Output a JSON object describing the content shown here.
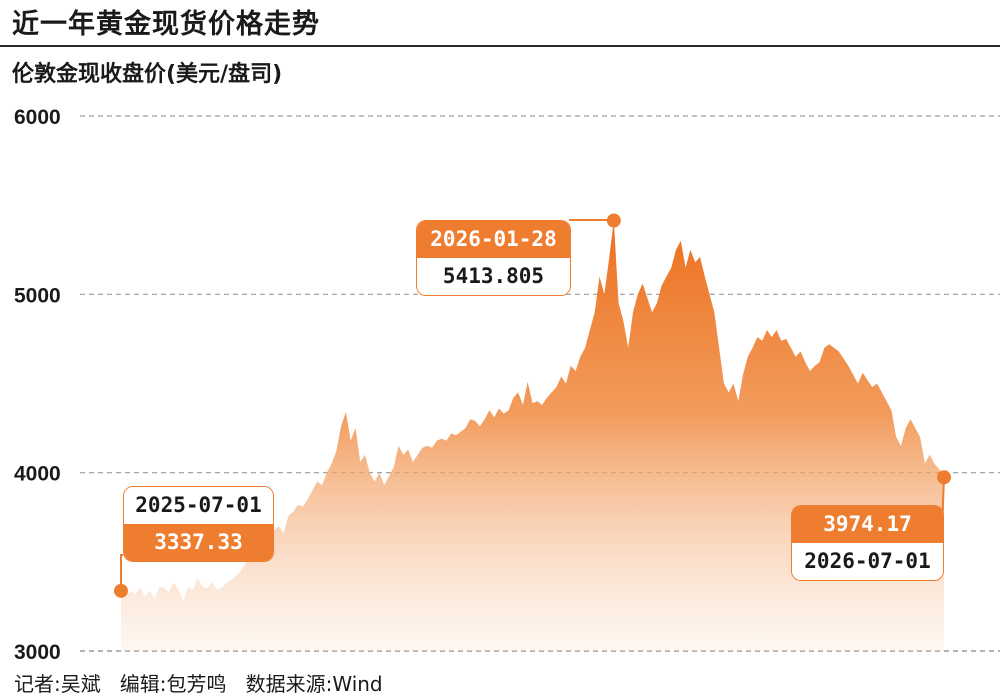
{
  "title": "近一年黄金现货价格走势",
  "ylabel": "伦敦金现收盘价(美元/盘司)",
  "footer": "记者:吴斌   编辑:包芳鸣   数据来源:Wind",
  "colors": {
    "accent": "#ef7d2f",
    "fill_light": "#fbe2cf",
    "grid": "#999999",
    "text": "#1a1a1a"
  },
  "callouts": {
    "start": {
      "date": "2025-07-01",
      "value": "3337.33"
    },
    "peak": {
      "date": "2026-01-28",
      "value": "5413.805"
    },
    "end": {
      "value": "3974.17",
      "date": "2026-07-01"
    }
  },
  "chart_data": {
    "type": "area",
    "title": "近一年黄金现货价格走势",
    "ylabel": "伦敦金现收盘价(美元/盘司)",
    "ylim": [
      3000,
      6000
    ],
    "yticks": [
      3000,
      4000,
      5000,
      6000
    ],
    "grid": true,
    "x_start": "2025-07-01",
    "x_end": "2026-07-01",
    "series": [
      {
        "values": [
          3337.33,
          3310,
          3335,
          3320,
          3355,
          3305,
          3340,
          3290,
          3360,
          3355,
          3330,
          3385,
          3345,
          3280,
          3360,
          3340,
          3410,
          3360,
          3350,
          3385,
          3345,
          3355,
          3380,
          3400,
          3420,
          3450,
          3490,
          3550,
          3650,
          3620,
          3640,
          3600,
          3680,
          3700,
          3660,
          3760,
          3780,
          3820,
          3810,
          3850,
          3900,
          3950,
          3930,
          4000,
          4050,
          4120,
          4260,
          4340,
          4180,
          4250,
          4060,
          4100,
          4000,
          3950,
          4000,
          3930,
          3980,
          4030,
          4150,
          4100,
          4130,
          4060,
          4100,
          4140,
          4150,
          4140,
          4180,
          4190,
          4180,
          4220,
          4210,
          4230,
          4250,
          4300,
          4290,
          4260,
          4300,
          4350,
          4310,
          4360,
          4330,
          4350,
          4420,
          4450,
          4380,
          4510,
          4390,
          4400,
          4380,
          4420,
          4450,
          4480,
          4540,
          4500,
          4600,
          4570,
          4650,
          4700,
          4800,
          4900,
          5100,
          5000,
          5200,
          5413.805,
          4950,
          4850,
          4700,
          4900,
          5000,
          5060,
          4980,
          4900,
          4950,
          5050,
          5100,
          5150,
          5250,
          5300,
          5150,
          5250,
          5180,
          5210,
          5100,
          5000,
          4900,
          4700,
          4500,
          4450,
          4500,
          4400,
          4550,
          4650,
          4700,
          4760,
          4740,
          4800,
          4760,
          4800,
          4740,
          4750,
          4700,
          4650,
          4680,
          4620,
          4570,
          4600,
          4620,
          4700,
          4720,
          4700,
          4680,
          4640,
          4600,
          4550,
          4500,
          4560,
          4520,
          4480,
          4500,
          4450,
          4400,
          4350,
          4200,
          4150,
          4250,
          4300,
          4250,
          4200,
          4050,
          4100,
          4050,
          4020,
          3974.17
        ]
      }
    ]
  }
}
